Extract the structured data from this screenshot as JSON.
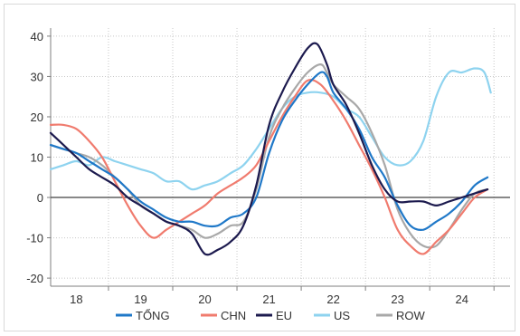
{
  "chart_data": {
    "type": "line",
    "title": "",
    "xlabel": "",
    "ylabel": "",
    "ylim": [
      -22,
      42
    ],
    "xlim": [
      2017.6,
      2024.75
    ],
    "grid": true,
    "legend_position": "bottom",
    "x_ticks": [
      {
        "value": 2018,
        "label": "18"
      },
      {
        "value": 2019,
        "label": "19"
      },
      {
        "value": 2020,
        "label": "20"
      },
      {
        "value": 2021,
        "label": "21"
      },
      {
        "value": 2022,
        "label": "22"
      },
      {
        "value": 2023,
        "label": "23"
      },
      {
        "value": 2024,
        "label": "24"
      }
    ],
    "y_ticks": [
      {
        "value": 40,
        "label": "40"
      },
      {
        "value": 30,
        "label": "30"
      },
      {
        "value": 20,
        "label": "20"
      },
      {
        "value": 10,
        "label": "10"
      },
      {
        "value": 0,
        "label": "0"
      },
      {
        "value": -10,
        "label": "-10"
      },
      {
        "value": -20,
        "label": "-20"
      }
    ],
    "series": [
      {
        "name": "TỔNG",
        "color": "#1f78c8",
        "points": [
          [
            2017.6,
            13
          ],
          [
            2017.8,
            12
          ],
          [
            2018.0,
            11
          ],
          [
            2018.2,
            9
          ],
          [
            2018.4,
            7
          ],
          [
            2018.6,
            5
          ],
          [
            2018.8,
            2
          ],
          [
            2019.0,
            -1
          ],
          [
            2019.2,
            -3
          ],
          [
            2019.4,
            -5
          ],
          [
            2019.6,
            -6
          ],
          [
            2019.8,
            -6
          ],
          [
            2020.0,
            -7
          ],
          [
            2020.2,
            -7
          ],
          [
            2020.4,
            -5
          ],
          [
            2020.6,
            -4
          ],
          [
            2020.8,
            0
          ],
          [
            2021.0,
            11
          ],
          [
            2021.2,
            19
          ],
          [
            2021.4,
            24
          ],
          [
            2021.6,
            28
          ],
          [
            2021.8,
            31
          ],
          [
            2021.9,
            30
          ],
          [
            2022.0,
            26
          ],
          [
            2022.2,
            22
          ],
          [
            2022.4,
            17
          ],
          [
            2022.6,
            10
          ],
          [
            2022.8,
            5
          ],
          [
            2023.0,
            -2
          ],
          [
            2023.2,
            -7
          ],
          [
            2023.4,
            -8
          ],
          [
            2023.6,
            -6
          ],
          [
            2023.8,
            -4
          ],
          [
            2024.0,
            -1
          ],
          [
            2024.2,
            3
          ],
          [
            2024.4,
            5
          ]
        ]
      },
      {
        "name": "CHN",
        "color": "#f07b6e",
        "points": [
          [
            2017.6,
            18
          ],
          [
            2017.8,
            18
          ],
          [
            2018.0,
            17
          ],
          [
            2018.2,
            14
          ],
          [
            2018.4,
            10
          ],
          [
            2018.6,
            4
          ],
          [
            2018.8,
            -2
          ],
          [
            2019.0,
            -7
          ],
          [
            2019.2,
            -10
          ],
          [
            2019.4,
            -8
          ],
          [
            2019.6,
            -6
          ],
          [
            2019.8,
            -4
          ],
          [
            2020.0,
            -2
          ],
          [
            2020.2,
            1
          ],
          [
            2020.4,
            3
          ],
          [
            2020.6,
            5
          ],
          [
            2020.8,
            8
          ],
          [
            2021.0,
            14
          ],
          [
            2021.2,
            20
          ],
          [
            2021.4,
            25
          ],
          [
            2021.6,
            29
          ],
          [
            2021.8,
            28
          ],
          [
            2022.0,
            24
          ],
          [
            2022.2,
            19
          ],
          [
            2022.4,
            13
          ],
          [
            2022.6,
            7
          ],
          [
            2022.8,
            0
          ],
          [
            2023.0,
            -8
          ],
          [
            2023.2,
            -12
          ],
          [
            2023.4,
            -14
          ],
          [
            2023.6,
            -11
          ],
          [
            2023.8,
            -8
          ],
          [
            2024.0,
            -4
          ],
          [
            2024.2,
            0
          ],
          [
            2024.4,
            2
          ]
        ]
      },
      {
        "name": "EU",
        "color": "#1c1a4e",
        "points": [
          [
            2017.6,
            16
          ],
          [
            2017.8,
            13
          ],
          [
            2018.0,
            10
          ],
          [
            2018.2,
            7
          ],
          [
            2018.4,
            5
          ],
          [
            2018.6,
            3
          ],
          [
            2018.8,
            0
          ],
          [
            2019.0,
            -2
          ],
          [
            2019.2,
            -4
          ],
          [
            2019.4,
            -6
          ],
          [
            2019.6,
            -7
          ],
          [
            2019.8,
            -9
          ],
          [
            2020.0,
            -14
          ],
          [
            2020.2,
            -13
          ],
          [
            2020.4,
            -11
          ],
          [
            2020.6,
            -7
          ],
          [
            2020.8,
            3
          ],
          [
            2021.0,
            18
          ],
          [
            2021.2,
            26
          ],
          [
            2021.4,
            32
          ],
          [
            2021.6,
            37
          ],
          [
            2021.75,
            38
          ],
          [
            2021.9,
            33
          ],
          [
            2022.0,
            28
          ],
          [
            2022.2,
            23
          ],
          [
            2022.4,
            16
          ],
          [
            2022.6,
            8
          ],
          [
            2022.8,
            2
          ],
          [
            2023.0,
            -1
          ],
          [
            2023.2,
            -1
          ],
          [
            2023.4,
            -1
          ],
          [
            2023.6,
            -2
          ],
          [
            2023.8,
            -1
          ],
          [
            2024.0,
            0
          ],
          [
            2024.2,
            1
          ],
          [
            2024.4,
            2
          ]
        ]
      },
      {
        "name": "US",
        "color": "#8ed3ef",
        "points": [
          [
            2017.6,
            7
          ],
          [
            2017.8,
            8
          ],
          [
            2018.0,
            9
          ],
          [
            2018.2,
            8
          ],
          [
            2018.4,
            10
          ],
          [
            2018.6,
            9
          ],
          [
            2018.8,
            8
          ],
          [
            2019.0,
            7
          ],
          [
            2019.2,
            6
          ],
          [
            2019.4,
            4
          ],
          [
            2019.6,
            4
          ],
          [
            2019.8,
            2
          ],
          [
            2020.0,
            3
          ],
          [
            2020.2,
            4
          ],
          [
            2020.4,
            6
          ],
          [
            2020.6,
            8
          ],
          [
            2020.8,
            12
          ],
          [
            2021.0,
            17
          ],
          [
            2021.2,
            22
          ],
          [
            2021.4,
            25
          ],
          [
            2021.6,
            26
          ],
          [
            2021.8,
            26
          ],
          [
            2022.0,
            25
          ],
          [
            2022.2,
            22
          ],
          [
            2022.4,
            20
          ],
          [
            2022.6,
            15
          ],
          [
            2022.8,
            10
          ],
          [
            2023.0,
            8
          ],
          [
            2023.2,
            9
          ],
          [
            2023.4,
            14
          ],
          [
            2023.6,
            25
          ],
          [
            2023.8,
            31
          ],
          [
            2024.0,
            31
          ],
          [
            2024.2,
            32
          ],
          [
            2024.35,
            31
          ],
          [
            2024.45,
            26
          ]
        ]
      },
      {
        "name": "ROW",
        "color": "#a8a8a8",
        "points": [
          [
            2017.6,
            13
          ],
          [
            2017.8,
            12
          ],
          [
            2018.0,
            11
          ],
          [
            2018.2,
            10
          ],
          [
            2018.4,
            8
          ],
          [
            2018.6,
            5
          ],
          [
            2018.8,
            2
          ],
          [
            2019.0,
            -2
          ],
          [
            2019.2,
            -4
          ],
          [
            2019.4,
            -6
          ],
          [
            2019.6,
            -7
          ],
          [
            2019.8,
            -8
          ],
          [
            2020.0,
            -10
          ],
          [
            2020.2,
            -9
          ],
          [
            2020.4,
            -7
          ],
          [
            2020.6,
            -6
          ],
          [
            2020.8,
            2
          ],
          [
            2021.0,
            15
          ],
          [
            2021.2,
            22
          ],
          [
            2021.4,
            27
          ],
          [
            2021.6,
            31
          ],
          [
            2021.8,
            33
          ],
          [
            2021.9,
            31
          ],
          [
            2022.0,
            28
          ],
          [
            2022.2,
            25
          ],
          [
            2022.4,
            22
          ],
          [
            2022.6,
            16
          ],
          [
            2022.8,
            8
          ],
          [
            2023.0,
            -3
          ],
          [
            2023.2,
            -9
          ],
          [
            2023.4,
            -12
          ],
          [
            2023.6,
            -12
          ],
          [
            2023.8,
            -8
          ],
          [
            2024.0,
            -3
          ],
          [
            2024.2,
            1
          ],
          [
            2024.4,
            2
          ]
        ]
      }
    ]
  }
}
